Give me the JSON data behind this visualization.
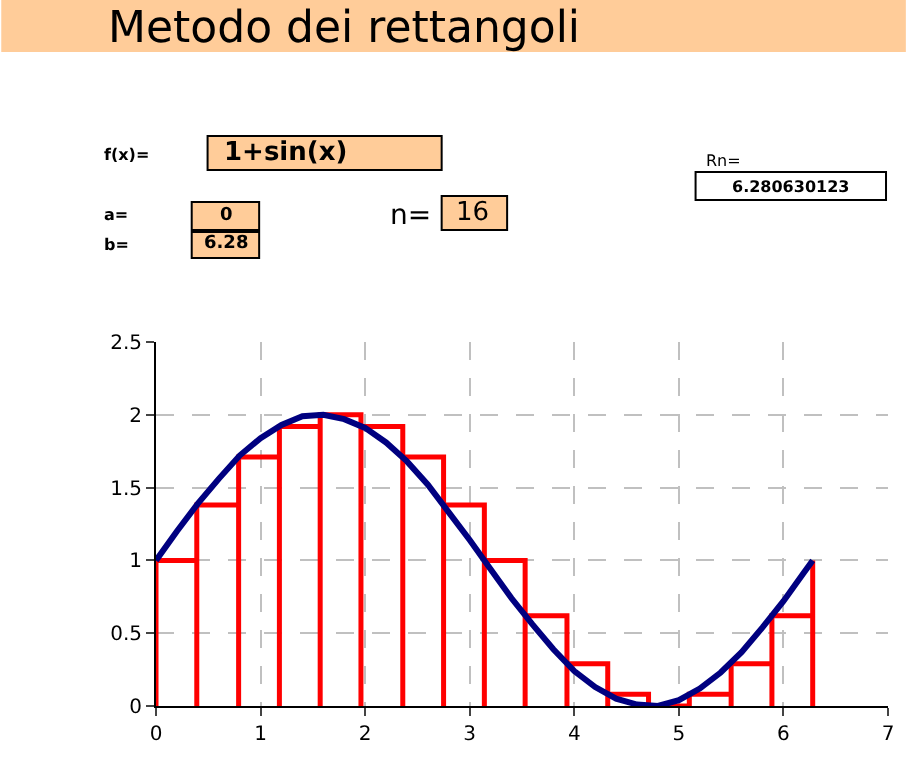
{
  "chart_data": {
    "type": "line",
    "title": "Metodo dei rettangoli",
    "annotations": [
      "f(x)=",
      "1+sin(x)",
      "a=",
      "0",
      "b=",
      "6.28",
      "n=",
      "16",
      "Rn=",
      "6.280630123"
    ],
    "series": [
      {
        "color": "#ff0000",
        "x": [
          0,
          0,
          0.39,
          0.39,
          0.39,
          0.39,
          0.79,
          0.79,
          0.79,
          0.79,
          1.18,
          1.18,
          1.18,
          1.18,
          1.57,
          1.57,
          1.57,
          1.57,
          1.96,
          1.96,
          1.96,
          1.96,
          2.36,
          2.36,
          2.36,
          2.36,
          2.75,
          2.75,
          2.75,
          2.75,
          3.14,
          3.14,
          3.14,
          3.14,
          3.53,
          3.53,
          3.53,
          3.53,
          3.93,
          3.93,
          3.93,
          3.93,
          4.32,
          4.32,
          4.32,
          4.32,
          4.71,
          4.71,
          4.71,
          4.71,
          5.1,
          5.1,
          5.1,
          5.1,
          5.5,
          5.5,
          5.5,
          5.5,
          5.89,
          5.89,
          5.89,
          5.89,
          6.28,
          6.28,
          6.28
        ],
        "values": [
          0,
          1,
          1,
          0,
          0,
          1.38,
          1.38,
          0,
          0,
          1.71,
          1.71,
          0,
          0,
          1.92,
          1.92,
          0,
          0,
          2,
          2,
          0,
          0,
          1.92,
          1.92,
          0,
          0,
          1.71,
          1.71,
          0,
          0,
          1.38,
          1.38,
          0,
          0,
          1,
          1,
          0,
          0,
          0.62,
          0.62,
          0,
          0,
          0.29,
          0.29,
          0,
          0,
          0.08,
          0.08,
          0,
          0,
          0,
          0,
          0,
          0,
          0.08,
          0.08,
          0,
          0,
          0.29,
          0.29,
          0,
          0,
          0.62,
          0.62,
          0,
          1
        ]
      },
      {
        "color": "#000080",
        "x": [
          0,
          0.2,
          0.4,
          0.6,
          0.8,
          1,
          1.2,
          1.4,
          1.6,
          1.8,
          2,
          2.2,
          2.4,
          2.6,
          2.8,
          3,
          3.2,
          3.4,
          3.6,
          3.8,
          4,
          4.2,
          4.4,
          4.6,
          4.8,
          5,
          5.2,
          5.4,
          5.6,
          5.8,
          6,
          6.2,
          6.28
        ],
        "values": [
          1,
          1.2,
          1.39,
          1.56,
          1.72,
          1.84,
          1.93,
          1.99,
          2,
          1.97,
          1.91,
          1.81,
          1.68,
          1.52,
          1.33,
          1.14,
          0.94,
          0.74,
          0.56,
          0.39,
          0.24,
          0.13,
          0.05,
          0.01,
          0,
          0.04,
          0.12,
          0.23,
          0.37,
          0.54,
          0.72,
          0.92,
          1
        ]
      }
    ],
    "xlim": [
      0,
      7
    ],
    "xticks": [
      0,
      1,
      2,
      3,
      4,
      5,
      6,
      7
    ],
    "ylim": [
      0,
      2.5
    ],
    "yticks": [
      0,
      0.5,
      1,
      1.5,
      2,
      2.5
    ],
    "grid": true,
    "line_style": "solid",
    "marker": "none"
  }
}
